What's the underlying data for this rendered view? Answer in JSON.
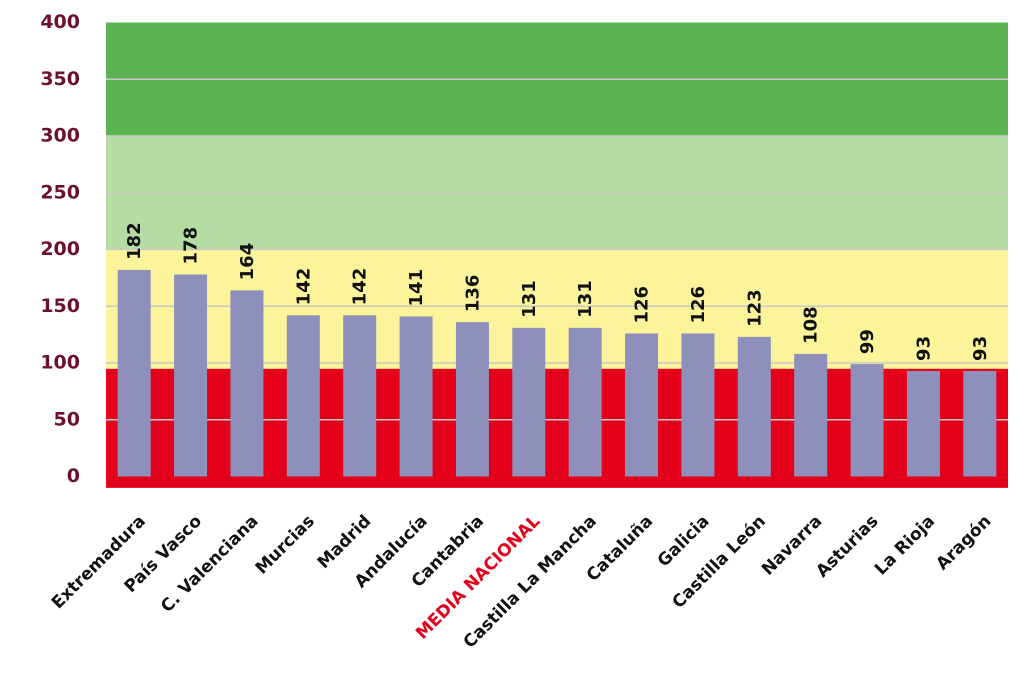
{
  "chart_data": {
    "type": "bar",
    "categories": [
      "Extremadura",
      "País Vasco",
      "C. Valenciana",
      "Murcias",
      "Madrid",
      "Andalucía",
      "Cantabria",
      "MEDIA NACIONAL",
      "Castilla La Mancha",
      "Cataluña",
      "Galicia",
      "Castilla León",
      "Navarra",
      "Asturias",
      "La Rioja",
      "Aragón"
    ],
    "values": [
      182,
      178,
      164,
      142,
      142,
      141,
      136,
      131,
      131,
      126,
      126,
      123,
      108,
      99,
      93,
      93
    ],
    "ylim": [
      0,
      400
    ],
    "yticks": [
      "0",
      "50",
      "100",
      "150",
      "200",
      "250",
      "300",
      "350",
      "400"
    ],
    "grid": true,
    "bands": [
      {
        "from": -10,
        "to": 95,
        "color": "#e2001a"
      },
      {
        "from": 95,
        "to": 200,
        "color": "#fcf49a"
      },
      {
        "from": 200,
        "to": 300,
        "color": "#b5dca3"
      },
      {
        "from": 300,
        "to": 400,
        "color": "#5bb354"
      }
    ],
    "highlight_category": "MEDIA NACIONAL",
    "colors": {
      "bar": "#8e90bb",
      "highlight_label": "#e2001a",
      "axis_text": "#6b1030",
      "label_text": "#111111",
      "grid": "#c9c9c9"
    }
  }
}
